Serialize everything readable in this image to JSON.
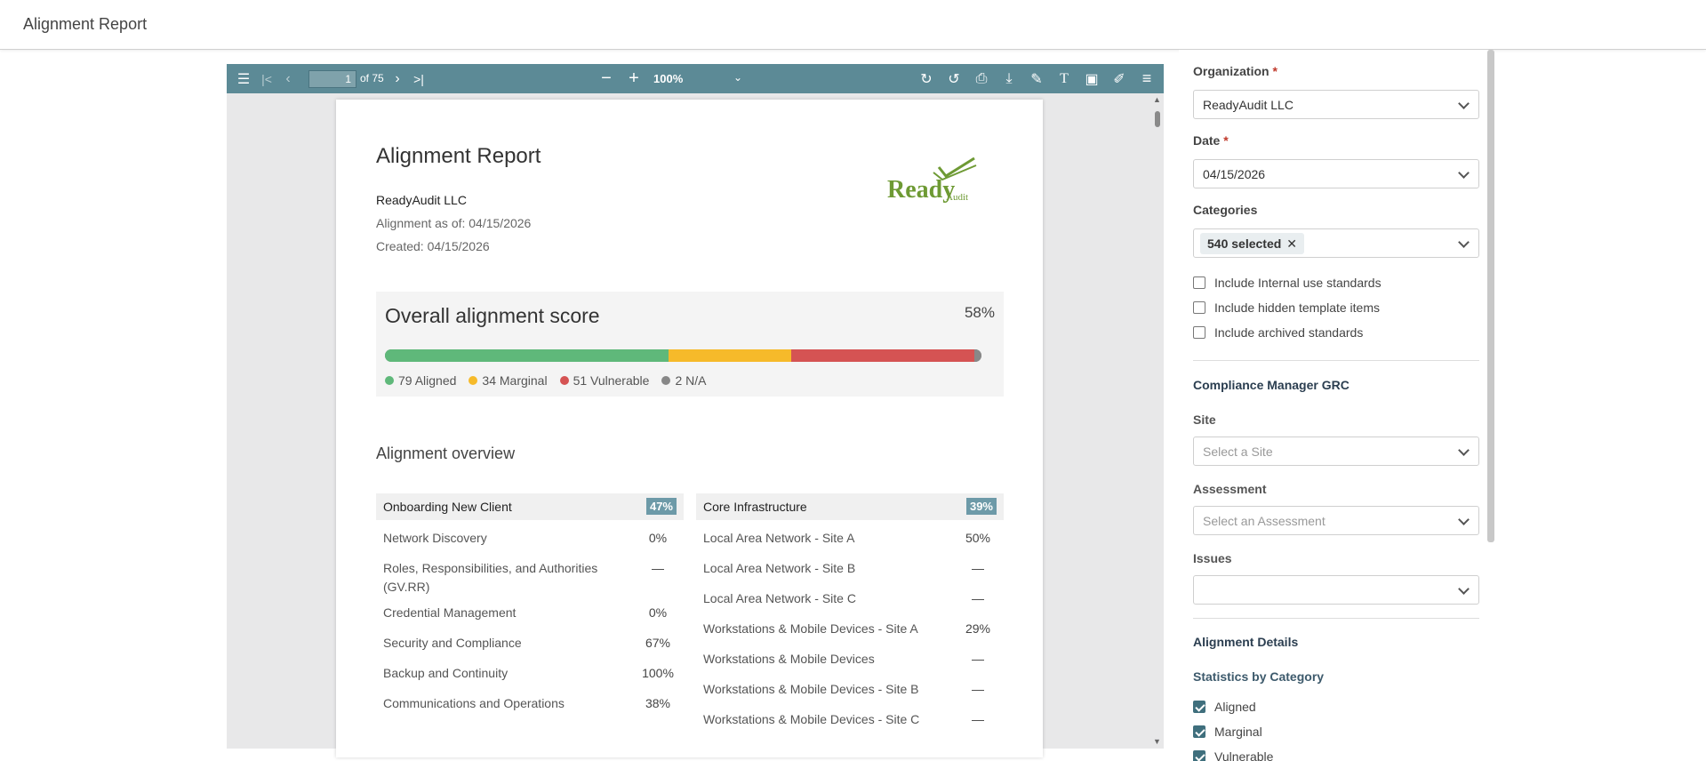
{
  "app": {
    "title": "Alignment Report"
  },
  "viewer": {
    "page_current": "1",
    "page_total": "of 75",
    "zoom": "100%",
    "icons": [
      "sidebar-toggle-icon",
      "first-page-icon",
      "prev-page-icon",
      "next-page-icon",
      "last-page-icon",
      "zoom-out-icon",
      "zoom-in-icon",
      "rotate-cw-icon",
      "rotate-ccw-icon",
      "print-icon",
      "download-icon",
      "draw-icon",
      "text-icon",
      "image-icon",
      "edit-icon",
      "menu-icon"
    ]
  },
  "report": {
    "title": "Alignment Report",
    "organization": "ReadyAudit LLC",
    "as_of": "Alignment as of: 04/15/2026",
    "created": "Created: 04/15/2026",
    "logo_text": "Ready",
    "logo_sub": "Audit",
    "score_label": "Overall alignment score",
    "score_pct": "58%",
    "score_fraction": 0.58,
    "legend": [
      {
        "label": "79 Aligned",
        "count": 79,
        "color": "#5fb87a"
      },
      {
        "label": "34 Marginal",
        "count": 34,
        "color": "#f6ba2a"
      },
      {
        "label": "51 Vulnerable",
        "count": 51,
        "color": "#d55353"
      },
      {
        "label": "2 N/A",
        "count": 2,
        "color": "#888888"
      }
    ],
    "overview_title": "Alignment overview",
    "overview": [
      {
        "name": "Onboarding New Client",
        "pct": "47%",
        "rows": [
          {
            "name": "Network Discovery",
            "pct": "0%"
          },
          {
            "name": "Roles, Responsibilities, and Authorities (GV.RR)",
            "pct": "—"
          },
          {
            "name": "Credential Management",
            "pct": "0%"
          },
          {
            "name": "Security and Compliance",
            "pct": "67%"
          },
          {
            "name": "Backup and Continuity",
            "pct": "100%"
          },
          {
            "name": "Communications and Operations",
            "pct": "38%"
          }
        ]
      },
      {
        "name": "Core Infrastructure",
        "pct": "39%",
        "rows": [
          {
            "name": "Local Area Network - Site A",
            "pct": "50%"
          },
          {
            "name": "Local Area Network - Site B",
            "pct": "—"
          },
          {
            "name": "Local Area Network - Site C",
            "pct": "—"
          },
          {
            "name": "Workstations & Mobile Devices - Site A",
            "pct": "29%"
          },
          {
            "name": "Workstations & Mobile Devices",
            "pct": "—"
          },
          {
            "name": "Workstations & Mobile Devices - Site B",
            "pct": "—"
          },
          {
            "name": "Workstations & Mobile Devices - Site C",
            "pct": "—"
          }
        ]
      }
    ]
  },
  "side": {
    "org_label": "Organization",
    "org_value": "ReadyAudit LLC",
    "date_label": "Date",
    "date_value": "04/15/2026",
    "categories_label": "Categories",
    "categories_chip": "540 selected",
    "required_mark": "*",
    "checks": [
      {
        "label": "Include Internal use standards",
        "checked": false
      },
      {
        "label": "Include hidden template items",
        "checked": false
      },
      {
        "label": "Include archived standards",
        "checked": false
      }
    ],
    "grc_title": "Compliance Manager GRC",
    "site_label": "Site",
    "site_placeholder": "Select a Site",
    "assessment_label": "Assessment",
    "assessment_placeholder": "Select an Assessment",
    "issues_label": "Issues",
    "issues_value": "",
    "details_title": "Alignment Details",
    "stats_title": "Statistics by Category",
    "stats": [
      {
        "label": "Aligned",
        "checked": true
      },
      {
        "label": "Marginal",
        "checked": true
      },
      {
        "label": "Vulnerable",
        "checked": true
      }
    ]
  }
}
